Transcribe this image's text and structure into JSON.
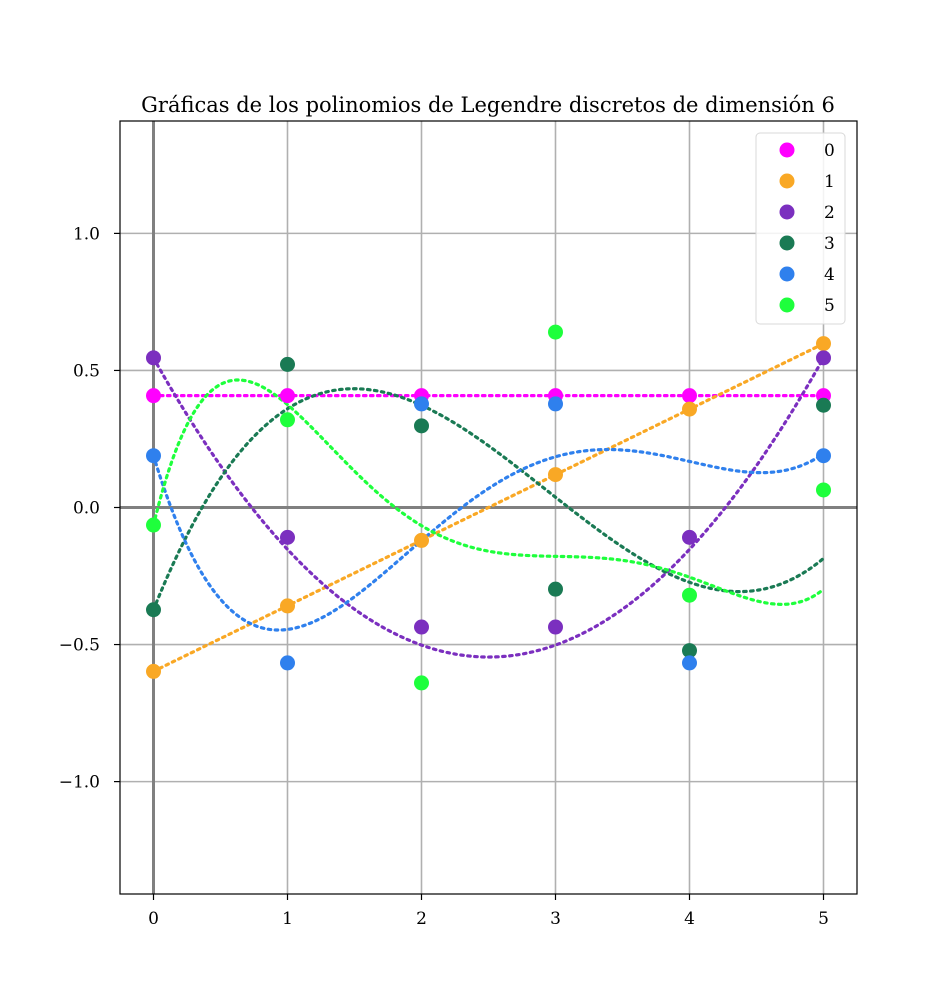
{
  "chart_data": {
    "type": "scatter",
    "title": "Gráficas de los polinomios de Legendre discretos de dimensión 6",
    "xlabel": "",
    "ylabel": "",
    "xlim": [
      -0.25,
      5.25
    ],
    "ylim": [
      -1.41,
      1.41
    ],
    "x_ticks": [
      0,
      1,
      2,
      3,
      4,
      5
    ],
    "x_tick_labels": [
      "0",
      "1",
      "2",
      "3",
      "4",
      "5"
    ],
    "y_ticks": [
      -1.0,
      -0.5,
      0.0,
      0.5,
      1.0
    ],
    "y_tick_labels": [
      "−1.0",
      "−0.5",
      "0.0",
      "0.5",
      "1.0"
    ],
    "grid": true,
    "axis_lines": {
      "x": 0,
      "y": 0
    },
    "legend_position": "top-right",
    "x": [
      0,
      1,
      2,
      3,
      4,
      5
    ],
    "series": [
      {
        "name": "0",
        "color": "#ff00ff",
        "values": [
          0.408,
          0.408,
          0.408,
          0.408,
          0.408,
          0.408
        ],
        "curve": [
          0.408248,
          0,
          0,
          0,
          0,
          0
        ]
      },
      {
        "name": "1",
        "color": "#f9a825",
        "values": [
          -0.598,
          -0.359,
          -0.12,
          0.12,
          0.359,
          0.598
        ],
        "curve": [
          -0.597614,
          0.239046,
          0,
          0,
          0,
          0
        ]
      },
      {
        "name": "2",
        "color": "#7b2fbf",
        "values": [
          0.546,
          -0.109,
          -0.436,
          -0.436,
          -0.109,
          0.546
        ],
        "curve": [
          0.545545,
          -0.872872,
          0.174574,
          0,
          0,
          0
        ]
      },
      {
        "name": "3",
        "color": "#1a7a54",
        "values": [
          -0.373,
          0.522,
          0.298,
          -0.298,
          -0.522,
          0.373
        ],
        "curve": [
          -0.372678,
          1.217414,
          -0.546566,
          0.062113,
          0,
          0
        ]
      },
      {
        "name": "4",
        "color": "#2f80ed",
        "values": [
          0.189,
          -0.567,
          0.378,
          0.378,
          -0.567,
          0.189
        ],
        "curve": [
          0.188982,
          -1.606211,
          1.275128,
          -0.330719,
          0.028,
          0
        ]
      },
      {
        "name": "5",
        "color": "#1eff3c",
        "values": [
          -0.064,
          0.32,
          -0.64,
          0.64,
          -0.32,
          0.064
        ],
        "curve": [
          -0.06405,
          2.017586,
          -2.482004,
          1.100813,
          -0.212138,
          0.014948
        ]
      }
    ]
  }
}
